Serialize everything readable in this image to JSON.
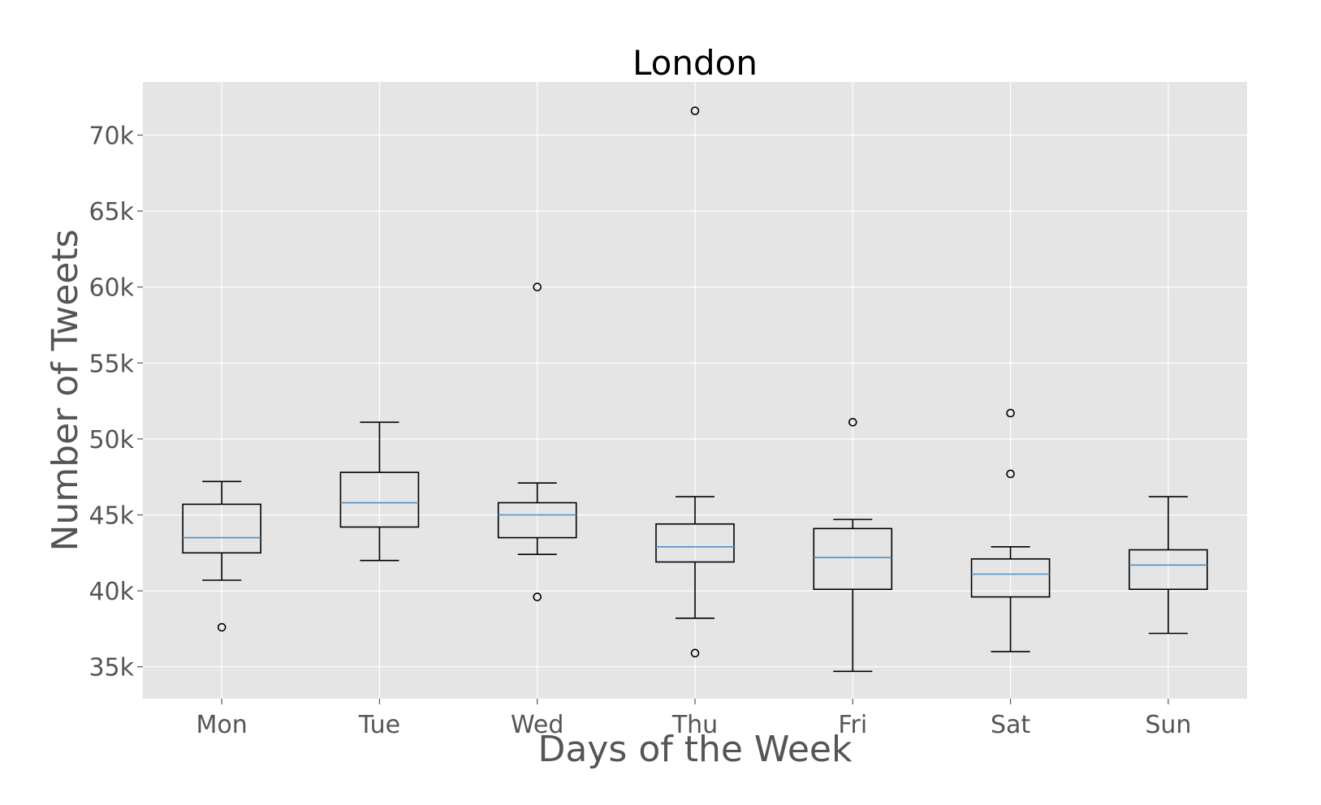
{
  "chart_data": {
    "type": "box",
    "title": "London",
    "xlabel": "Days of the Week",
    "ylabel": "Number of Tweets",
    "ylim": [
      32900,
      73500
    ],
    "yticks": [
      35000,
      40000,
      45000,
      50000,
      55000,
      60000,
      65000,
      70000
    ],
    "ytick_labels": [
      "35k",
      "40k",
      "45k",
      "50k",
      "55k",
      "60k",
      "65k",
      "70k"
    ],
    "grid": true,
    "categories": [
      "Mon",
      "Tue",
      "Wed",
      "Thu",
      "Fri",
      "Sat",
      "Sun"
    ],
    "boxes": [
      {
        "category": "Mon",
        "whisker_low": 40700,
        "q1": 42500,
        "median": 43500,
        "q3": 45700,
        "whisker_high": 47200,
        "outliers": [
          37600
        ]
      },
      {
        "category": "Tue",
        "whisker_low": 42000,
        "q1": 44200,
        "median": 45800,
        "q3": 47800,
        "whisker_high": 51100,
        "outliers": []
      },
      {
        "category": "Wed",
        "whisker_low": 42400,
        "q1": 43500,
        "median": 45000,
        "q3": 45800,
        "whisker_high": 47100,
        "outliers": [
          60000,
          39600
        ]
      },
      {
        "category": "Thu",
        "whisker_low": 38200,
        "q1": 41900,
        "median": 42900,
        "q3": 44400,
        "whisker_high": 46200,
        "outliers": [
          71600,
          35900
        ]
      },
      {
        "category": "Fri",
        "whisker_low": 34700,
        "q1": 40100,
        "median": 42200,
        "q3": 44100,
        "whisker_high": 44700,
        "outliers": [
          51100
        ]
      },
      {
        "category": "Sat",
        "whisker_low": 36000,
        "q1": 39600,
        "median": 41100,
        "q3": 42100,
        "whisker_high": 42900,
        "outliers": [
          51700,
          47700
        ]
      },
      {
        "category": "Sun",
        "whisker_low": 37200,
        "q1": 40100,
        "median": 41700,
        "q3": 42700,
        "whisker_high": 46200,
        "outliers": []
      }
    ],
    "colors": {
      "plot_background": "#e5e5e5",
      "grid": "#ffffff",
      "box": "#000000",
      "median": "#4c8fc7",
      "text": "#555555"
    }
  }
}
